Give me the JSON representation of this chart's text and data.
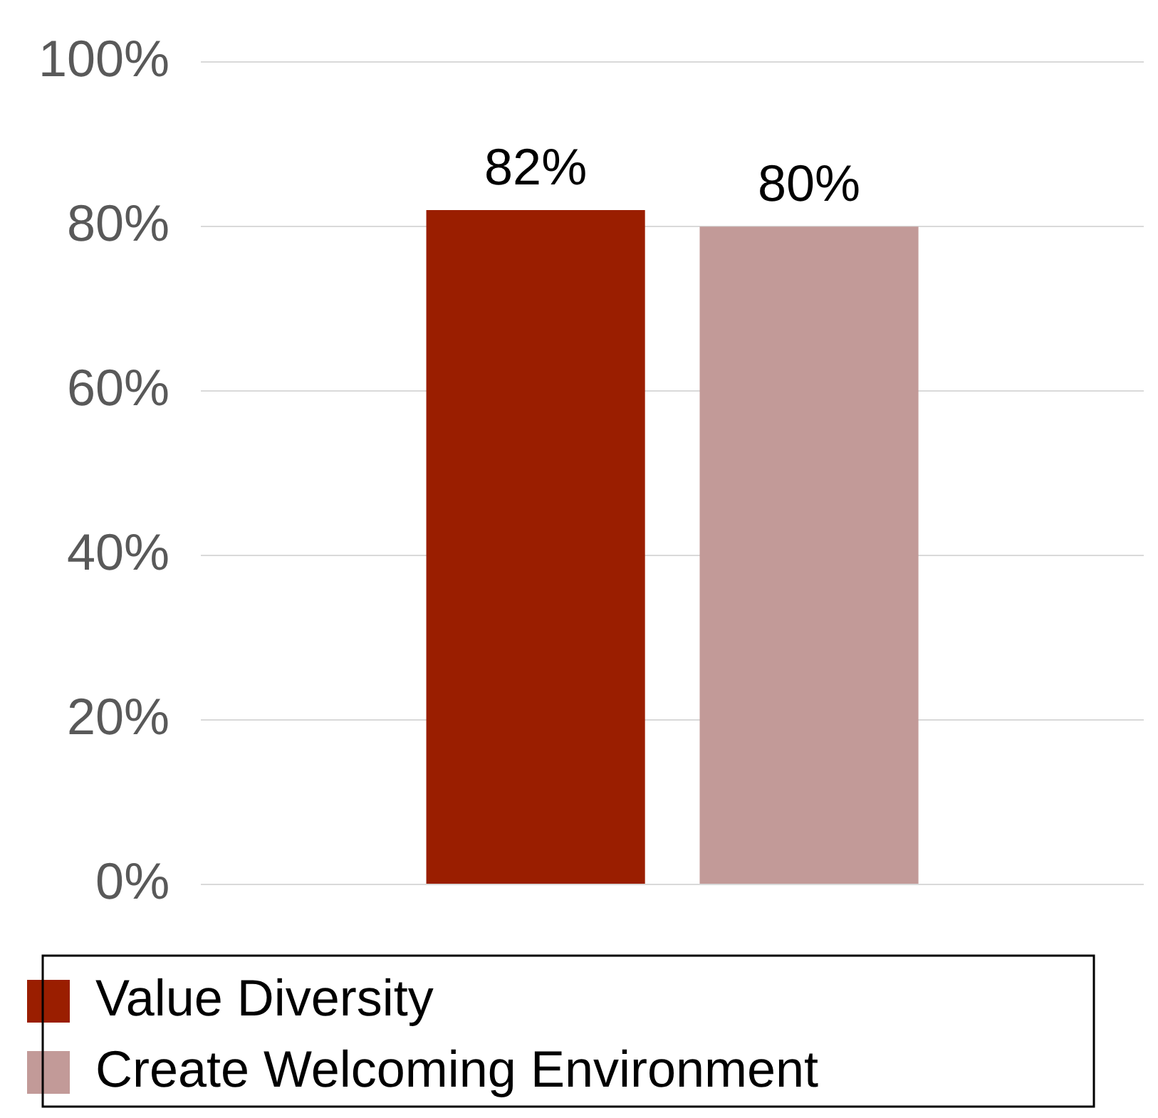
{
  "chart_data": {
    "type": "bar",
    "categories": [
      null
    ],
    "series": [
      {
        "name": "Value Diversity",
        "color": "#9a1e00",
        "values": [
          82
        ],
        "value_labels": [
          "82%"
        ]
      },
      {
        "name": "Create Welcoming Environment",
        "color": "#c29a98",
        "values": [
          80
        ],
        "value_labels": [
          "80%"
        ]
      }
    ],
    "ylim": [
      0,
      100
    ],
    "yticks": [
      {
        "value": 0,
        "label": "0%"
      },
      {
        "value": 20,
        "label": "20%"
      },
      {
        "value": 40,
        "label": "40%"
      },
      {
        "value": 60,
        "label": "60%"
      },
      {
        "value": 80,
        "label": "80%"
      },
      {
        "value": 100,
        "label": "100%"
      }
    ],
    "grid": "y",
    "legend": "bottom"
  }
}
